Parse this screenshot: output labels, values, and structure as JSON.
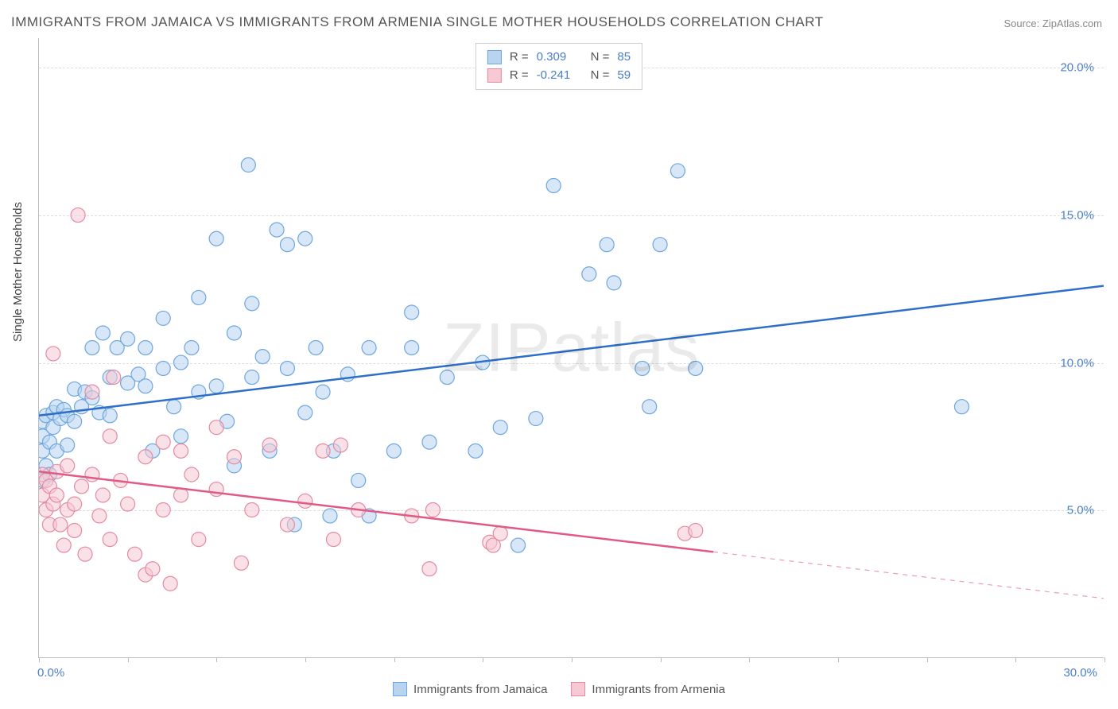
{
  "title": "IMMIGRANTS FROM JAMAICA VS IMMIGRANTS FROM ARMENIA SINGLE MOTHER HOUSEHOLDS CORRELATION CHART",
  "source": "Source: ZipAtlas.com",
  "watermark": "ZIPatlas",
  "yaxis_label": "Single Mother Households",
  "chart": {
    "type": "scatter-with-regression",
    "background_color": "#ffffff",
    "grid_color": "#dddddd",
    "axis_color": "#bbbbbb",
    "xlim": [
      0,
      30
    ],
    "ylim": [
      0,
      21
    ],
    "xtick_positions": [
      0,
      2.5,
      5,
      7.5,
      10,
      12.5,
      15,
      17.5,
      20,
      22.5,
      25,
      27.5,
      30
    ],
    "ytick_positions": [
      5,
      10,
      15,
      20
    ],
    "ytick_labels": [
      "5.0%",
      "10.0%",
      "15.0%",
      "20.0%"
    ],
    "x_min_label": "0.0%",
    "x_max_label": "30.0%",
    "tick_label_color": "#4a7ec9",
    "tick_label_fontsize": 15,
    "marker_radius": 9,
    "marker_opacity": 0.55,
    "line_width": 2.5
  },
  "series": [
    {
      "name": "Immigrants from Jamaica",
      "color_fill": "#b8d4f0",
      "color_stroke": "#6ea6de",
      "line_color": "#2e6fc9",
      "r_value": "0.309",
      "n_value": "85",
      "regression": {
        "x1": 0,
        "y1": 8.2,
        "x2": 30,
        "y2": 12.6,
        "solid_to_x": 30
      },
      "points": [
        [
          0.1,
          7.0
        ],
        [
          0.1,
          7.5
        ],
        [
          0.1,
          6.0
        ],
        [
          0.1,
          8.0
        ],
        [
          0.2,
          8.2
        ],
        [
          0.2,
          6.5
        ],
        [
          0.3,
          7.3
        ],
        [
          0.3,
          6.2
        ],
        [
          0.4,
          7.8
        ],
        [
          0.4,
          8.3
        ],
        [
          0.5,
          8.5
        ],
        [
          0.5,
          7.0
        ],
        [
          0.6,
          8.1
        ],
        [
          0.7,
          8.4
        ],
        [
          0.8,
          8.2
        ],
        [
          0.8,
          7.2
        ],
        [
          1.0,
          9.1
        ],
        [
          1.0,
          8.0
        ],
        [
          1.2,
          8.5
        ],
        [
          1.3,
          9.0
        ],
        [
          1.5,
          8.8
        ],
        [
          1.5,
          10.5
        ],
        [
          1.7,
          8.3
        ],
        [
          1.8,
          11.0
        ],
        [
          2.0,
          9.5
        ],
        [
          2.0,
          8.2
        ],
        [
          2.2,
          10.5
        ],
        [
          2.5,
          9.3
        ],
        [
          2.5,
          10.8
        ],
        [
          2.8,
          9.6
        ],
        [
          3.0,
          9.2
        ],
        [
          3.0,
          10.5
        ],
        [
          3.2,
          7.0
        ],
        [
          3.5,
          9.8
        ],
        [
          3.5,
          11.5
        ],
        [
          3.8,
          8.5
        ],
        [
          4.0,
          10.0
        ],
        [
          4.0,
          7.5
        ],
        [
          4.3,
          10.5
        ],
        [
          4.5,
          9.0
        ],
        [
          4.5,
          12.2
        ],
        [
          5.0,
          9.2
        ],
        [
          5.0,
          14.2
        ],
        [
          5.3,
          8.0
        ],
        [
          5.5,
          11.0
        ],
        [
          5.5,
          6.5
        ],
        [
          5.9,
          16.7
        ],
        [
          6.0,
          9.5
        ],
        [
          6.0,
          12.0
        ],
        [
          6.3,
          10.2
        ],
        [
          6.5,
          7.0
        ],
        [
          6.7,
          14.5
        ],
        [
          7.0,
          9.8
        ],
        [
          7.0,
          14.0
        ],
        [
          7.2,
          4.5
        ],
        [
          7.5,
          8.3
        ],
        [
          7.5,
          14.2
        ],
        [
          7.8,
          10.5
        ],
        [
          8.0,
          9.0
        ],
        [
          8.2,
          4.8
        ],
        [
          8.3,
          7.0
        ],
        [
          8.7,
          9.6
        ],
        [
          9.0,
          6.0
        ],
        [
          9.3,
          10.5
        ],
        [
          9.3,
          4.8
        ],
        [
          10.0,
          7.0
        ],
        [
          10.5,
          10.5
        ],
        [
          10.5,
          11.7
        ],
        [
          11.0,
          7.3
        ],
        [
          11.5,
          9.5
        ],
        [
          12.3,
          7.0
        ],
        [
          12.5,
          10.0
        ],
        [
          13.0,
          7.8
        ],
        [
          13.5,
          3.8
        ],
        [
          14.0,
          8.1
        ],
        [
          14.5,
          16.0
        ],
        [
          15.5,
          13.0
        ],
        [
          16.0,
          14.0
        ],
        [
          16.2,
          12.7
        ],
        [
          17.0,
          9.8
        ],
        [
          17.2,
          8.5
        ],
        [
          17.5,
          14.0
        ],
        [
          18.0,
          16.5
        ],
        [
          18.5,
          9.8
        ],
        [
          26.0,
          8.5
        ]
      ]
    },
    {
      "name": "Immigrants from Armenia",
      "color_fill": "#f6c9d4",
      "color_stroke": "#e48aa3",
      "line_color": "#e15a84",
      "r_value": "-0.241",
      "n_value": "59",
      "regression": {
        "x1": 0,
        "y1": 6.3,
        "x2": 30,
        "y2": 2.0,
        "solid_to_x": 19
      },
      "points": [
        [
          0.1,
          5.5
        ],
        [
          0.1,
          6.2
        ],
        [
          0.2,
          5.0
        ],
        [
          0.2,
          6.0
        ],
        [
          0.3,
          5.8
        ],
        [
          0.3,
          4.5
        ],
        [
          0.4,
          10.3
        ],
        [
          0.4,
          5.2
        ],
        [
          0.5,
          6.3
        ],
        [
          0.5,
          5.5
        ],
        [
          0.6,
          4.5
        ],
        [
          0.7,
          3.8
        ],
        [
          0.8,
          5.0
        ],
        [
          0.8,
          6.5
        ],
        [
          1.0,
          5.2
        ],
        [
          1.0,
          4.3
        ],
        [
          1.1,
          15.0
        ],
        [
          1.2,
          5.8
        ],
        [
          1.3,
          3.5
        ],
        [
          1.5,
          9.0
        ],
        [
          1.5,
          6.2
        ],
        [
          1.7,
          4.8
        ],
        [
          1.8,
          5.5
        ],
        [
          2.0,
          7.5
        ],
        [
          2.0,
          4.0
        ],
        [
          2.1,
          9.5
        ],
        [
          2.3,
          6.0
        ],
        [
          2.5,
          5.2
        ],
        [
          2.7,
          3.5
        ],
        [
          3.0,
          6.8
        ],
        [
          3.0,
          2.8
        ],
        [
          3.2,
          3.0
        ],
        [
          3.5,
          5.0
        ],
        [
          3.5,
          7.3
        ],
        [
          3.7,
          2.5
        ],
        [
          4.0,
          7.0
        ],
        [
          4.0,
          5.5
        ],
        [
          4.3,
          6.2
        ],
        [
          4.5,
          4.0
        ],
        [
          5.0,
          5.7
        ],
        [
          5.0,
          7.8
        ],
        [
          5.5,
          6.8
        ],
        [
          5.7,
          3.2
        ],
        [
          6.0,
          5.0
        ],
        [
          6.5,
          7.2
        ],
        [
          7.0,
          4.5
        ],
        [
          7.5,
          5.3
        ],
        [
          8.0,
          7.0
        ],
        [
          8.3,
          4.0
        ],
        [
          8.5,
          7.2
        ],
        [
          9.0,
          5.0
        ],
        [
          10.5,
          4.8
        ],
        [
          11.0,
          3.0
        ],
        [
          11.1,
          5.0
        ],
        [
          12.7,
          3.9
        ],
        [
          12.8,
          3.8
        ],
        [
          13.0,
          4.2
        ],
        [
          18.2,
          4.2
        ],
        [
          18.5,
          4.3
        ]
      ]
    }
  ],
  "legend_top": {
    "r_label": "R =",
    "n_label": "N ="
  },
  "legend_bottom_labels": [
    "Immigrants from Jamaica",
    "Immigrants from Armenia"
  ]
}
